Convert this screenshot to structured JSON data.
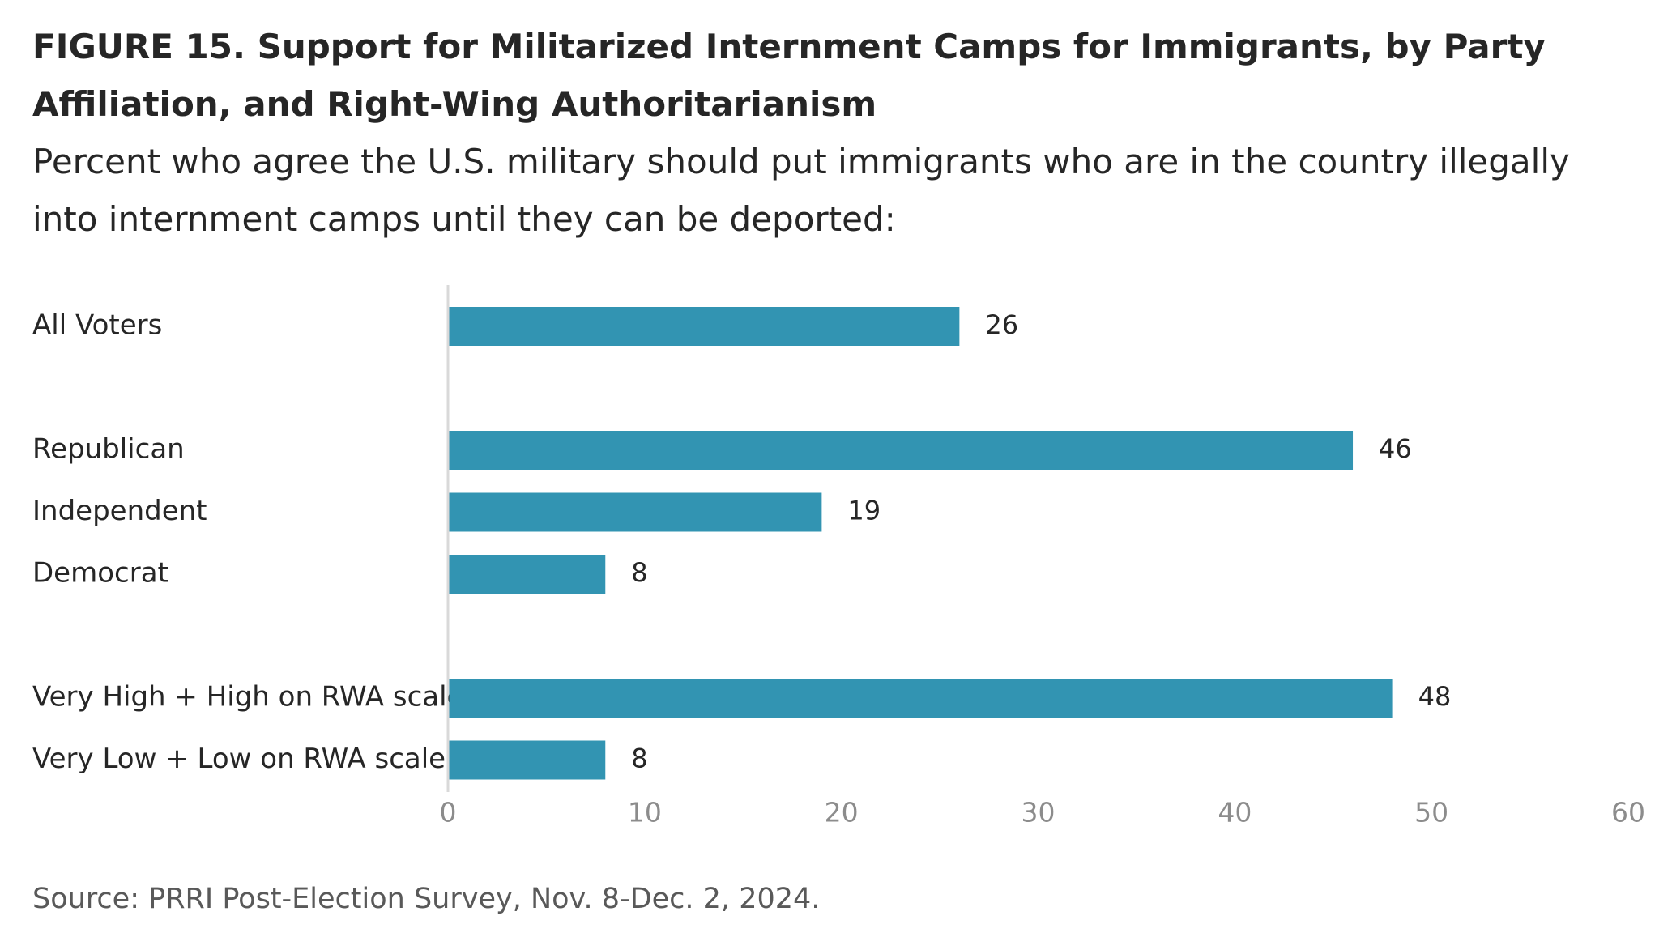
{
  "title": "FIGURE 15.  Support for Militarized Internment Camps for Immigrants, by Party Affiliation, and Right-Wing Authoritarianism",
  "subtitle": "Percent who agree the U.S. military should put immigrants who are in the country illegally into internment camps until they can be deported:",
  "source": "Source: PRRI Post-Election Survey, Nov. 8-Dec. 2, 2024.",
  "chart_data": {
    "type": "bar",
    "orientation": "horizontal",
    "categories": [
      "All Voters",
      "Republican",
      "Independent",
      "Democrat",
      "Very High + High on RWA scale",
      "Very Low + Low on RWA scale"
    ],
    "groups": [
      [
        0
      ],
      [
        1,
        2,
        3
      ],
      [
        4,
        5
      ]
    ],
    "values": [
      26,
      46,
      19,
      8,
      48,
      8
    ],
    "xlim": [
      0,
      60
    ],
    "xticks": [
      0,
      10,
      20,
      30,
      40,
      50,
      60
    ],
    "grid": false,
    "bar_color": "#3294b2",
    "axis_color": "#d9d9d9"
  }
}
